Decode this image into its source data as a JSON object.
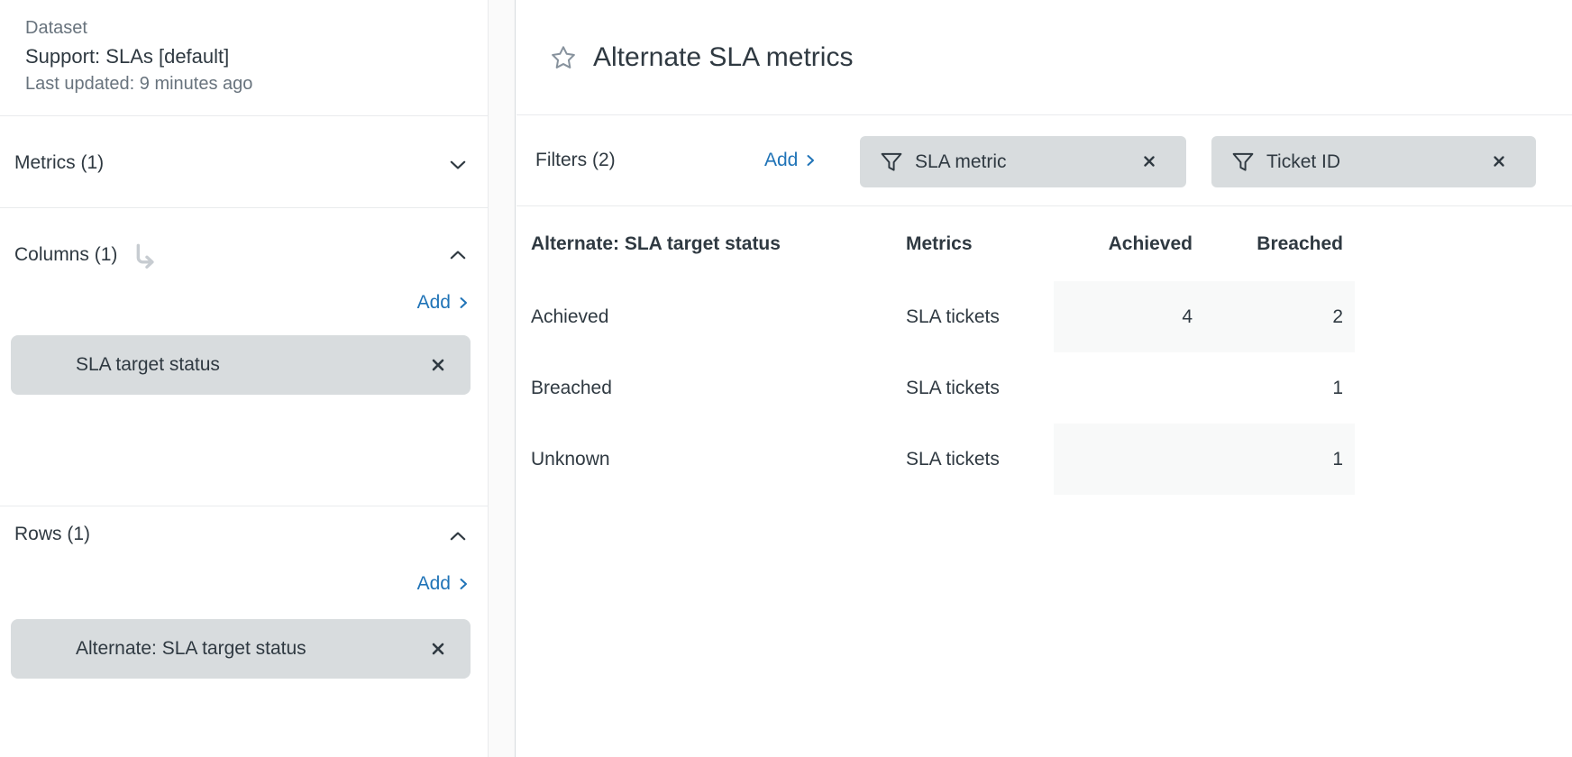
{
  "sidebar": {
    "dataset": {
      "label": "Dataset",
      "name": "Support: SLAs [default]",
      "updated": "Last updated: 9 minutes ago"
    },
    "metrics": {
      "title": "Metrics (1)"
    },
    "columns": {
      "title": "Columns (1)",
      "add_label": "Add",
      "chip": "SLA target status"
    },
    "rows": {
      "title": "Rows (1)",
      "add_label": "Add",
      "chip": "Alternate: SLA target status"
    }
  },
  "header": {
    "title": "Alternate SLA metrics"
  },
  "filters": {
    "title": "Filters (2)",
    "add_label": "Add",
    "chips": [
      {
        "label": "SLA metric"
      },
      {
        "label": "Ticket ID"
      }
    ]
  },
  "table": {
    "headers": [
      "Alternate: SLA target status",
      "Metrics",
      "Achieved",
      "Breached"
    ],
    "rows": [
      {
        "dimension": "Achieved",
        "metric": "SLA tickets",
        "achieved": "4",
        "breached": "2"
      },
      {
        "dimension": "Breached",
        "metric": "SLA tickets",
        "achieved": "",
        "breached": "1"
      },
      {
        "dimension": "Unknown",
        "metric": "SLA tickets",
        "achieved": "",
        "breached": "1"
      }
    ]
  },
  "colors": {
    "accent_blue": "#1f73b7",
    "text_dark": "#2f3941",
    "text_gray": "#68737d",
    "chip_bg": "#d8dcde",
    "cell_shade": "#f8f9f9"
  }
}
